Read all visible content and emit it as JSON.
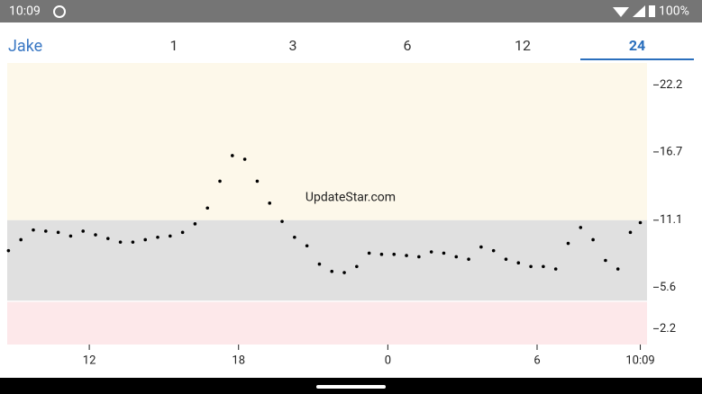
{
  "status_bar": {
    "time": "10:09",
    "battery": "100%"
  },
  "tabs": {
    "name": "Jake",
    "options": [
      "1",
      "3",
      "6",
      "12",
      "24"
    ],
    "selected": "24"
  },
  "chart_data": {
    "type": "scatter",
    "annotation": "UpdateStar.com",
    "xlim": [
      8.7,
      34.42
    ],
    "ylim": [
      0.9,
      24.0
    ],
    "xticks": [
      12,
      18,
      {
        "value": 24,
        "label": "0"
      },
      {
        "value": 30,
        "label": "6"
      },
      {
        "value": 34.15,
        "label": "10:09"
      }
    ],
    "yticks": [
      22.2,
      16.7,
      11.1,
      5.6,
      2.2
    ],
    "bands": [
      {
        "from": 11.1,
        "to": 24.0,
        "color": "#fdf8ea"
      },
      {
        "from": 4.5,
        "to": 11.1,
        "color": "#e0e0e0"
      },
      {
        "from": 0.9,
        "to": 4.4,
        "color": "#fde8ea"
      }
    ],
    "series": [
      {
        "color": "#000000",
        "x": [
          8.75,
          9.25,
          9.75,
          10.25,
          10.75,
          11.25,
          11.75,
          12.25,
          12.75,
          13.25,
          13.75,
          14.25,
          14.75,
          15.25,
          15.75,
          16.25,
          16.75,
          17.25,
          17.75,
          18.25,
          18.75,
          19.25,
          19.75,
          20.25,
          20.75,
          21.25,
          21.75,
          22.25,
          22.75,
          23.25,
          23.75,
          24.25,
          24.75,
          25.25,
          25.75,
          26.25,
          26.75,
          27.25,
          27.75,
          28.25,
          28.75,
          29.25,
          29.75,
          30.25,
          30.75,
          31.25,
          31.75,
          32.25,
          32.75,
          33.25,
          33.75,
          34.15
        ],
        "values": [
          8.6,
          9.5,
          10.3,
          10.2,
          10.1,
          9.8,
          10.2,
          9.9,
          9.6,
          9.3,
          9.3,
          9.5,
          9.7,
          9.8,
          10.1,
          10.8,
          12.1,
          14.3,
          16.4,
          16.1,
          14.3,
          12.5,
          11.0,
          9.7,
          9.0,
          7.5,
          6.9,
          6.8,
          7.3,
          8.4,
          8.3,
          8.3,
          8.2,
          8.1,
          8.5,
          8.4,
          8.1,
          7.9,
          8.9,
          8.6,
          7.9,
          7.6,
          7.3,
          7.3,
          7.1,
          9.2,
          10.5,
          9.5,
          7.8,
          7.1,
          10.1,
          10.9
        ]
      }
    ]
  }
}
